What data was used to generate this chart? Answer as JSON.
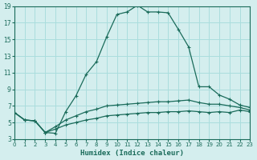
{
  "xlabel": "Humidex (Indice chaleur)",
  "xlim": [
    0,
    23
  ],
  "ylim": [
    3,
    19
  ],
  "yticks": [
    3,
    5,
    7,
    9,
    11,
    13,
    15,
    17,
    19
  ],
  "xticks": [
    0,
    1,
    2,
    3,
    4,
    5,
    6,
    7,
    8,
    9,
    10,
    11,
    12,
    13,
    14,
    15,
    16,
    17,
    18,
    19,
    20,
    21,
    22,
    23
  ],
  "bg_color": "#d4eeee",
  "grid_color": "#aadddd",
  "line_color": "#1a6b5a",
  "line1_x": [
    0,
    1,
    2,
    3,
    4,
    5,
    6,
    7,
    8,
    9,
    10,
    11,
    12,
    13,
    14,
    15,
    16,
    17,
    18,
    19,
    20,
    21,
    22,
    23
  ],
  "line1_y": [
    6.2,
    5.3,
    5.2,
    3.8,
    3.7,
    6.3,
    8.2,
    10.8,
    12.3,
    15.3,
    18.0,
    18.3,
    19.1,
    18.3,
    18.3,
    18.2,
    16.2,
    14.1,
    9.3,
    9.3,
    8.3,
    7.8,
    7.1,
    6.8
  ],
  "line2_x": [
    0,
    1,
    2,
    3,
    4,
    5,
    6,
    7,
    8,
    9,
    10,
    11,
    12,
    13,
    14,
    15,
    16,
    17,
    18,
    19,
    20,
    21,
    22,
    23
  ],
  "line2_y": [
    6.2,
    5.3,
    5.2,
    3.8,
    4.5,
    5.3,
    5.8,
    6.3,
    6.6,
    7.0,
    7.1,
    7.2,
    7.3,
    7.4,
    7.5,
    7.5,
    7.6,
    7.7,
    7.4,
    7.2,
    7.2,
    7.0,
    6.8,
    6.5
  ],
  "line3_x": [
    0,
    1,
    2,
    3,
    4,
    5,
    6,
    7,
    8,
    9,
    10,
    11,
    12,
    13,
    14,
    15,
    16,
    17,
    18,
    19,
    20,
    21,
    22,
    23
  ],
  "line3_y": [
    6.2,
    5.3,
    5.2,
    3.8,
    4.2,
    4.7,
    5.0,
    5.3,
    5.5,
    5.8,
    5.9,
    6.0,
    6.1,
    6.2,
    6.2,
    6.3,
    6.3,
    6.4,
    6.3,
    6.2,
    6.3,
    6.2,
    6.5,
    6.3
  ]
}
